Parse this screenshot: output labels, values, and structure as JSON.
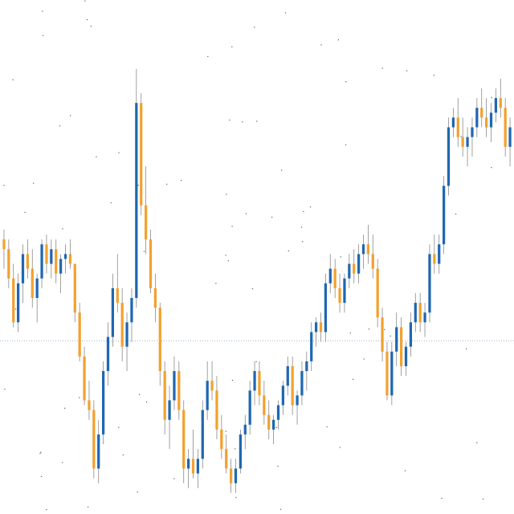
{
  "chart_data": {
    "type": "candlestick",
    "title": "",
    "xlabel": "",
    "ylabel": "",
    "ylim": [
      0,
      100
    ],
    "grid": false,
    "reference_line": {
      "y": 34.2,
      "style": "dotted"
    },
    "colors": {
      "up": "#1f67b1",
      "down": "#f2a12f",
      "reference": "#9fb3c8",
      "dust": "#333333"
    },
    "candles": [
      [
        55,
        57,
        49,
        53
      ],
      [
        53,
        55,
        45,
        47
      ],
      [
        47,
        50,
        37,
        38
      ],
      [
        38,
        48,
        36,
        46
      ],
      [
        46,
        54,
        42,
        52
      ],
      [
        52,
        55,
        47,
        49
      ],
      [
        49,
        53,
        41,
        43
      ],
      [
        43,
        48,
        38,
        47
      ],
      [
        47,
        55,
        45,
        54
      ],
      [
        54,
        56,
        48,
        50
      ],
      [
        50,
        55,
        47,
        53
      ],
      [
        53,
        55,
        46,
        48
      ],
      [
        48,
        52,
        44,
        51
      ],
      [
        51,
        54,
        48,
        52
      ],
      [
        52,
        55,
        49,
        50
      ],
      [
        50,
        50,
        38,
        40
      ],
      [
        40,
        42,
        30,
        31
      ],
      [
        31,
        33,
        21,
        22
      ],
      [
        22,
        26,
        18,
        20
      ],
      [
        20,
        22,
        6,
        8
      ],
      [
        8,
        18,
        5,
        15
      ],
      [
        15,
        30,
        13,
        28
      ],
      [
        28,
        38,
        25,
        35
      ],
      [
        35,
        48,
        33,
        45
      ],
      [
        45,
        52,
        40,
        42
      ],
      [
        42,
        45,
        30,
        33
      ],
      [
        33,
        40,
        28,
        38
      ],
      [
        38,
        45,
        34,
        43
      ],
      [
        43,
        90,
        41,
        83
      ],
      [
        83,
        85,
        60,
        62
      ],
      [
        62,
        70,
        52,
        55
      ],
      [
        55,
        57,
        44,
        45
      ],
      [
        45,
        48,
        38,
        41
      ],
      [
        41,
        42,
        25,
        28
      ],
      [
        28,
        30,
        15,
        18
      ],
      [
        18,
        25,
        12,
        22
      ],
      [
        22,
        31,
        20,
        28
      ],
      [
        28,
        30,
        18,
        20
      ],
      [
        20,
        22,
        5,
        8
      ],
      [
        8,
        12,
        4,
        10
      ],
      [
        10,
        16,
        6,
        7
      ],
      [
        7,
        12,
        4,
        10
      ],
      [
        10,
        22,
        8,
        20
      ],
      [
        20,
        30,
        18,
        26
      ],
      [
        26,
        30,
        22,
        24
      ],
      [
        24,
        27,
        14,
        16
      ],
      [
        16,
        19,
        10,
        12
      ],
      [
        12,
        15,
        7,
        8
      ],
      [
        8,
        10,
        3,
        5
      ],
      [
        5,
        10,
        3,
        8
      ],
      [
        8,
        16,
        7,
        15
      ],
      [
        15,
        19,
        12,
        17
      ],
      [
        17,
        26,
        15,
        24
      ],
      [
        24,
        30,
        21,
        28
      ],
      [
        28,
        30,
        21,
        23
      ],
      [
        23,
        26,
        17,
        19
      ],
      [
        19,
        22,
        14,
        16
      ],
      [
        16,
        19,
        13,
        18
      ],
      [
        18,
        22,
        16,
        21
      ],
      [
        21,
        26,
        19,
        25
      ],
      [
        25,
        31,
        23,
        29
      ],
      [
        29,
        31,
        19,
        21
      ],
      [
        21,
        24,
        17,
        23
      ],
      [
        23,
        30,
        21,
        28
      ],
      [
        28,
        32,
        24,
        30
      ],
      [
        30,
        38,
        28,
        36
      ],
      [
        36,
        39,
        33,
        38
      ],
      [
        38,
        40,
        34,
        36
      ],
      [
        36,
        48,
        34,
        46
      ],
      [
        46,
        52,
        44,
        49
      ],
      [
        49,
        51,
        43,
        45
      ],
      [
        45,
        48,
        40,
        42
      ],
      [
        42,
        48,
        40,
        47
      ],
      [
        47,
        52,
        45,
        50
      ],
      [
        50,
        53,
        46,
        48
      ],
      [
        48,
        54,
        46,
        52
      ],
      [
        52,
        56,
        49,
        54
      ],
      [
        54,
        58,
        50,
        52
      ],
      [
        52,
        56,
        47,
        49
      ],
      [
        49,
        51,
        37,
        39
      ],
      [
        39,
        41,
        30,
        32
      ],
      [
        32,
        34,
        22,
        23
      ],
      [
        23,
        34,
        21,
        32
      ],
      [
        32,
        40,
        29,
        37
      ],
      [
        37,
        39,
        27,
        29
      ],
      [
        29,
        34,
        27,
        33
      ],
      [
        33,
        40,
        31,
        38
      ],
      [
        38,
        44,
        36,
        42
      ],
      [
        42,
        44,
        36,
        38
      ],
      [
        38,
        42,
        35,
        40
      ],
      [
        40,
        54,
        38,
        52
      ],
      [
        52,
        56,
        48,
        50
      ],
      [
        50,
        56,
        48,
        54
      ],
      [
        54,
        68,
        52,
        66
      ],
      [
        66,
        80,
        64,
        78
      ],
      [
        78,
        82,
        76,
        80
      ],
      [
        80,
        84,
        74,
        76
      ],
      [
        76,
        80,
        72,
        74
      ],
      [
        74,
        78,
        70,
        76
      ],
      [
        76,
        80,
        72,
        78
      ],
      [
        78,
        84,
        76,
        82
      ],
      [
        82,
        86,
        78,
        80
      ],
      [
        80,
        84,
        76,
        78
      ],
      [
        78,
        83,
        75,
        81
      ],
      [
        81,
        86,
        79,
        84
      ],
      [
        84,
        88,
        80,
        82
      ],
      [
        82,
        84,
        72,
        74
      ],
      [
        74,
        80,
        70,
        78
      ]
    ]
  }
}
